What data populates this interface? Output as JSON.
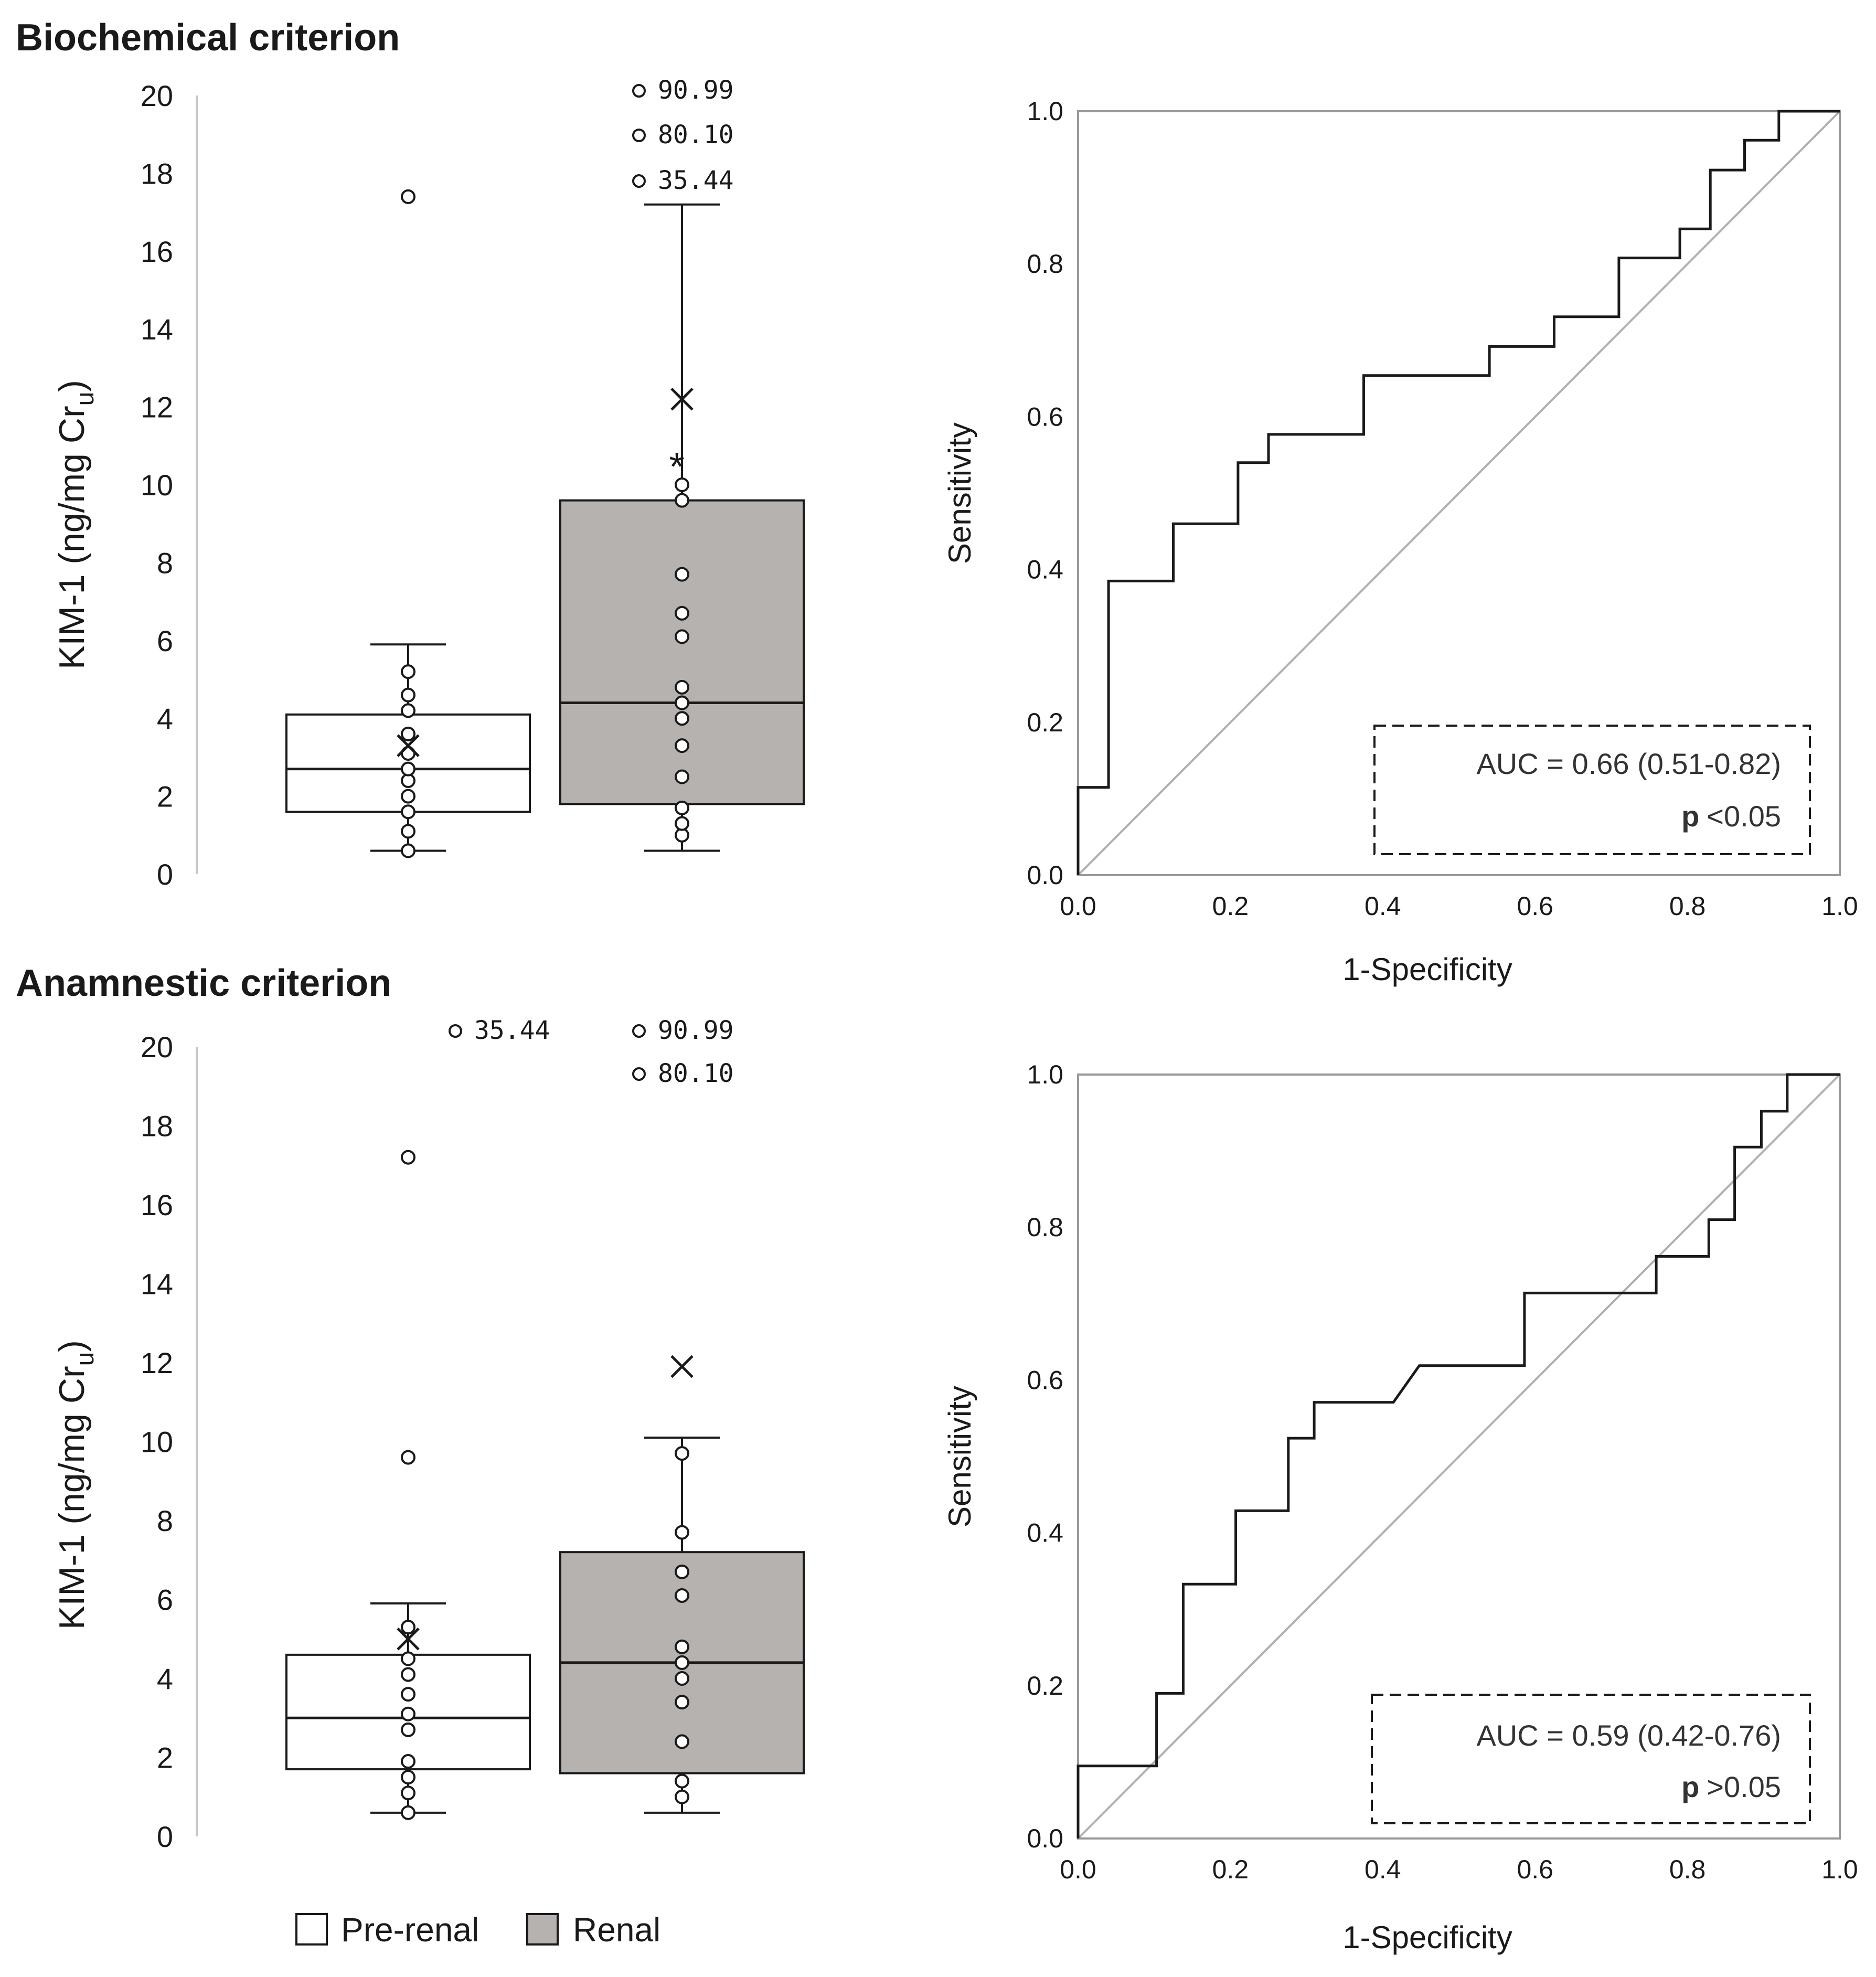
{
  "colors": {
    "prerenal_fill": "#ffffff",
    "renal_fill": "#b5b2b0",
    "line": "#1a1a1a",
    "diagonal": "#b0b0b0"
  },
  "legend": [
    {
      "label": "Pre-renal",
      "color": "#ffffff"
    },
    {
      "label": "Renal",
      "color": "#b5b2b0"
    }
  ],
  "chart_data": [
    {
      "type": "box",
      "title": "Biochemical criterion",
      "ylabel": "KIM-1 (ng/mg Cr",
      "ylabel_sub": "u",
      "ylabel_close": ")",
      "ylim": [
        0,
        20
      ],
      "yticks": [
        "0",
        "2",
        "4",
        "6",
        "8",
        "10",
        "12",
        "14",
        "16",
        "18",
        "20"
      ],
      "groups": [
        {
          "name": "Pre-renal",
          "min": 0.6,
          "q1": 1.6,
          "median": 2.7,
          "q3": 4.1,
          "max": 5.9,
          "mean": 3.3,
          "points": [
            0.6,
            1.1,
            1.6,
            2.0,
            2.4,
            2.7,
            3.1,
            3.6,
            4.2,
            4.6,
            5.2,
            17.4
          ],
          "outlier_labels": []
        },
        {
          "name": "Renal",
          "min": 0.6,
          "q1": 1.8,
          "median": 4.4,
          "q3": 9.6,
          "max": 17.2,
          "mean": 12.2,
          "star": 10.6,
          "points": [
            1.0,
            1.3,
            1.7,
            2.5,
            3.3,
            4.0,
            4.4,
            4.8,
            6.1,
            6.7,
            7.7,
            9.6,
            10.0
          ],
          "outlier_labels": [
            "90.99",
            "80.10",
            "35.44"
          ]
        }
      ]
    },
    {
      "type": "line",
      "subtype": "roc",
      "xlabel": "1-Specificity",
      "ylabel": "Sensitivity",
      "ticks": [
        "0.0",
        "0.2",
        "0.4",
        "0.6",
        "0.8",
        "1.0"
      ],
      "auc_text": "AUC = 0.66 (0.51-0.82)",
      "p_label": "p",
      "p_value": "<0.05",
      "x": [
        0,
        0,
        0.04,
        0.04,
        0.125,
        0.125,
        0.21,
        0.21,
        0.25,
        0.25,
        0.375,
        0.375,
        0.54,
        0.54,
        0.625,
        0.625,
        0.71,
        0.71,
        0.79,
        0.79,
        0.83,
        0.83,
        0.875,
        0.875,
        0.92,
        0.92,
        1.0
      ],
      "y": [
        0,
        0.115,
        0.115,
        0.385,
        0.385,
        0.46,
        0.46,
        0.54,
        0.54,
        0.577,
        0.577,
        0.654,
        0.654,
        0.692,
        0.692,
        0.731,
        0.731,
        0.808,
        0.808,
        0.846,
        0.846,
        0.923,
        0.923,
        0.962,
        0.962,
        1.0,
        1.0
      ]
    },
    {
      "type": "box",
      "title": "Anamnestic criterion",
      "ylabel": "KIM-1 (ng/mg Cr",
      "ylabel_sub": "u",
      "ylabel_close": ")",
      "ylim": [
        0,
        20
      ],
      "yticks": [
        "0",
        "2",
        "4",
        "6",
        "8",
        "10",
        "12",
        "14",
        "16",
        "18",
        "20"
      ],
      "groups": [
        {
          "name": "Pre-renal",
          "min": 0.6,
          "q1": 1.7,
          "median": 3.0,
          "q3": 4.6,
          "max": 5.9,
          "mean": 5.0,
          "points": [
            0.6,
            1.1,
            1.5,
            1.9,
            2.7,
            3.1,
            3.6,
            4.1,
            4.5,
            5.3,
            9.6,
            17.2
          ],
          "outlier_labels": [
            "35.44"
          ]
        },
        {
          "name": "Renal",
          "min": 0.6,
          "q1": 1.6,
          "median": 4.4,
          "q3": 7.2,
          "max": 10.1,
          "mean": 11.9,
          "points": [
            1.0,
            1.4,
            2.4,
            3.4,
            4.0,
            4.4,
            4.8,
            6.1,
            6.7,
            7.7,
            9.7
          ],
          "outlier_labels": [
            "90.99",
            "80.10"
          ]
        }
      ]
    },
    {
      "type": "line",
      "subtype": "roc",
      "xlabel": "1-Specificity",
      "ylabel": "Sensitivity",
      "ticks": [
        "0.0",
        "0.2",
        "0.4",
        "0.6",
        "0.8",
        "1.0"
      ],
      "auc_text": "AUC = 0.59 (0.42-0.76)",
      "p_label": "p",
      "p_value": ">0.05",
      "x": [
        0,
        0,
        0.103,
        0.103,
        0.138,
        0.138,
        0.207,
        0.207,
        0.276,
        0.276,
        0.31,
        0.31,
        0.414,
        0.448,
        0.586,
        0.586,
        0.759,
        0.759,
        0.828,
        0.828,
        0.862,
        0.862,
        0.897,
        0.897,
        0.931,
        0.931,
        1.0
      ],
      "y": [
        0,
        0.095,
        0.095,
        0.19,
        0.19,
        0.333,
        0.333,
        0.429,
        0.429,
        0.524,
        0.524,
        0.571,
        0.571,
        0.619,
        0.619,
        0.714,
        0.714,
        0.762,
        0.762,
        0.81,
        0.81,
        0.905,
        0.905,
        0.952,
        0.952,
        1.0,
        1.0
      ]
    }
  ]
}
